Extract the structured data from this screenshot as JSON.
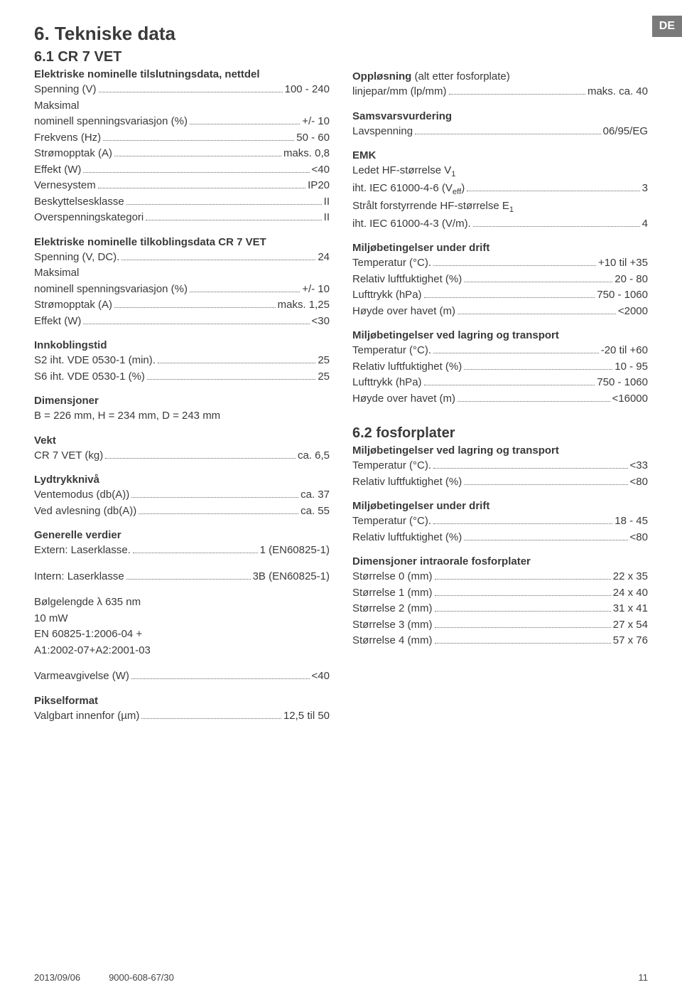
{
  "de_tag": "DE",
  "h1": "6. Tekniske data",
  "left": {
    "h2": "6.1 CR 7 VET",
    "sec1": {
      "title": "Elektriske nominelle tilslutningsdata, nettdel",
      "rows": [
        {
          "label": "Spenning (V)",
          "val": "100 - 240"
        },
        {
          "label": "Maksimal",
          "plain": true
        },
        {
          "label": "nominell spenningsvariasjon (%)",
          "val": "+/- 10"
        },
        {
          "label": "Frekvens (Hz)",
          "val": "50 - 60"
        },
        {
          "label": "Strømopptak (A)",
          "val": "maks. 0,8"
        },
        {
          "label": "Effekt (W)",
          "val": "<40"
        },
        {
          "label": "Vernesystem",
          "val": "IP20"
        },
        {
          "label": "Beskyttelsesklasse",
          "val": "II"
        },
        {
          "label": "Overspenningskategori",
          "val": "II"
        }
      ]
    },
    "sec2": {
      "title": "Elektriske nominelle tilkoblingsdata CR 7 VET",
      "rows": [
        {
          "label": "Spenning (V, DC).",
          "val": "24"
        },
        {
          "label": "Maksimal",
          "plain": true
        },
        {
          "label": "nominell spenningsvariasjon (%)",
          "val": "+/- 10"
        },
        {
          "label": "Strømopptak (A)",
          "val": "maks. 1,25"
        },
        {
          "label": "Effekt (W)",
          "val": "<30"
        }
      ]
    },
    "sec3": {
      "title": "Innkoblingstid",
      "rows": [
        {
          "label": "S2 iht. VDE 0530-1 (min).",
          "val": "25"
        },
        {
          "label": "S6 iht. VDE 0530-1 (%)",
          "val": "25"
        }
      ]
    },
    "sec4": {
      "title": "Dimensjoner",
      "rows": [
        {
          "label": "B = 226 mm, H = 234 mm, D = 243 mm",
          "plain": true
        }
      ]
    },
    "sec5": {
      "title": "Vekt",
      "rows": [
        {
          "label": "CR 7 VET (kg)",
          "val": "ca. 6,5"
        }
      ]
    },
    "sec6": {
      "title": "Lydtrykknivå",
      "rows": [
        {
          "label": "Ventemodus (db(A))",
          "val": "ca. 37"
        },
        {
          "label": "Ved avlesning (db(A))",
          "val": "ca. 55"
        }
      ]
    },
    "sec7": {
      "title": "Generelle verdier",
      "rows": [
        {
          "label": "Extern: Laserklasse.",
          "val": "1 (EN60825-1)"
        }
      ]
    },
    "sec7b": {
      "rows": [
        {
          "label": "Intern: Laserklasse",
          "val": "3B (EN60825-1)"
        }
      ]
    },
    "sec7c": {
      "lines": [
        "Bølgelengde λ 635 nm",
        "10 mW",
        "EN 60825-1:2006-04 +",
        "A1:2002-07+A2:2001-03"
      ]
    },
    "sec7d": {
      "rows": [
        {
          "label": "Varmeavgivelse (W)",
          "val": "<40"
        }
      ]
    },
    "sec8": {
      "title": "Pikselformat",
      "rows": [
        {
          "label": "Valgbart innenfor (µm)",
          "val": "12,5 til 50"
        }
      ]
    }
  },
  "right": {
    "sec1": {
      "title_html": "Oppløsning <span style='font-weight:normal'>(alt etter fosforplate)</span>",
      "rows": [
        {
          "label": "linjepar/mm (lp/mm)",
          "val": "maks. ca. 40"
        }
      ]
    },
    "sec2": {
      "title": "Samsvarsvurdering",
      "rows": [
        {
          "label": "Lavspenning",
          "val": "06/95/EG"
        }
      ]
    },
    "sec3": {
      "title": "EMK",
      "rows": [
        {
          "label_html": "Ledet HF-størrelse V<sub>1</sub>",
          "plain": true
        },
        {
          "label_html": "iht. IEC 61000-4-6 (V<sub>eff</sub>)",
          "val": "3"
        },
        {
          "label_html": "Strålt forstyrrende HF-størrelse E<sub>1</sub>",
          "plain": true
        },
        {
          "label": "iht. IEC 61000-4-3 (V/m).",
          "val": "4"
        }
      ]
    },
    "sec4": {
      "title": "Miljøbetingelser under drift",
      "rows": [
        {
          "label": "Temperatur (°C).",
          "val": "+10 til +35"
        },
        {
          "label": "Relativ luftfuktighet (%)",
          "val": "20 - 80"
        },
        {
          "label": "Lufttrykk (hPa)",
          "val": "750 - 1060"
        },
        {
          "label": "Høyde over havet (m)",
          "val": "<2000"
        }
      ]
    },
    "sec5": {
      "title": "Miljøbetingelser ved lagring og transport",
      "rows": [
        {
          "label": "Temperatur (°C).",
          "val": "-20 til +60"
        },
        {
          "label": "Relativ luftfuktighet (%)",
          "val": "10 - 95"
        },
        {
          "label": "Lufttrykk (hPa)",
          "val": "750 - 1060"
        },
        {
          "label": "Høyde over havet (m)",
          "val": "<16000"
        }
      ]
    },
    "h2b": "6.2 fosforplater",
    "sec6": {
      "title": "Miljøbetingelser ved lagring og transport",
      "rows": [
        {
          "label": "Temperatur (°C).",
          "val": "<33"
        },
        {
          "label": "Relativ luftfuktighet (%)",
          "val": "<80"
        }
      ]
    },
    "sec7": {
      "title": "Miljøbetingelser under drift",
      "rows": [
        {
          "label": "Temperatur (°C).",
          "val": "18 - 45"
        },
        {
          "label": "Relativ luftfuktighet (%)",
          "val": "<80"
        }
      ]
    },
    "sec8": {
      "title": "Dimensjoner intraorale fosforplater",
      "rows": [
        {
          "label": "Størrelse 0 (mm)",
          "val": "22 x 35"
        },
        {
          "label": "Størrelse 1 (mm)",
          "val": "24 x 40"
        },
        {
          "label": "Størrelse 2 (mm)",
          "val": "31 x 41"
        },
        {
          "label": "Størrelse 3 (mm)",
          "val": "27 x 54"
        },
        {
          "label": "Størrelse 4 (mm)",
          "val": "57 x 76"
        }
      ]
    }
  },
  "footer": {
    "date": "2013/09/06",
    "code": "9000-608-67/30",
    "page": "11"
  }
}
